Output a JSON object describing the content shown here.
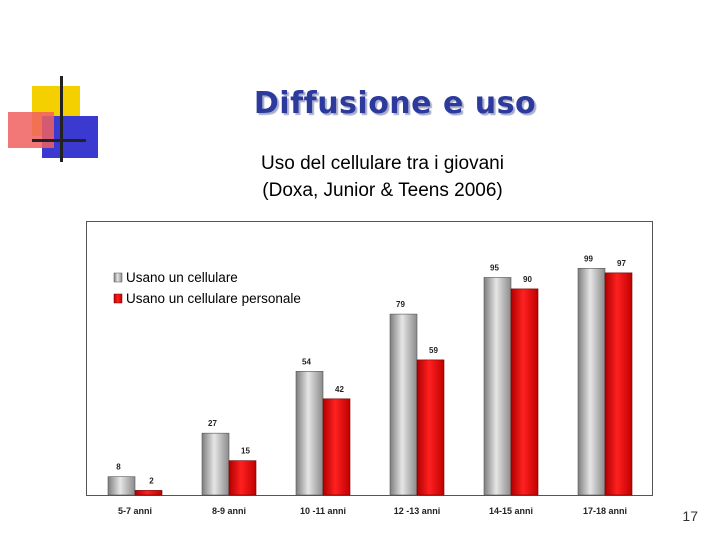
{
  "slide": {
    "title": "Diffusione e uso",
    "subtitle_line1": "Uso del cellulare tra i giovani",
    "subtitle_line2": "(Doxa, Junior & Teens 2006)",
    "page_number": "17"
  },
  "colors": {
    "title": "#2b3a9c",
    "series1": "#9a9a9a",
    "series2": "#e00000",
    "logo_yellow": "#f5d000",
    "logo_blue": "#3a3ad0",
    "logo_red": "#f06060"
  },
  "chart_data": {
    "type": "bar",
    "categories": [
      "5-7 anni",
      "8-9 anni",
      "10 -11 anni",
      "12 -13 anni",
      "14-15 anni",
      "17-18 anni"
    ],
    "series": [
      {
        "name": "Usano un cellulare",
        "values": [
          8,
          27,
          54,
          79,
          95,
          99
        ],
        "labels": [
          "8",
          "27",
          "54",
          "79",
          "95",
          "99"
        ]
      },
      {
        "name": "Usano un cellulare personale",
        "values": [
          2,
          15,
          42,
          59,
          90,
          97
        ],
        "labels": [
          "2",
          "15",
          "42",
          "59",
          "90",
          "97"
        ]
      }
    ],
    "ylim": [
      0,
      100
    ],
    "grid": false,
    "legend": "top-left"
  }
}
